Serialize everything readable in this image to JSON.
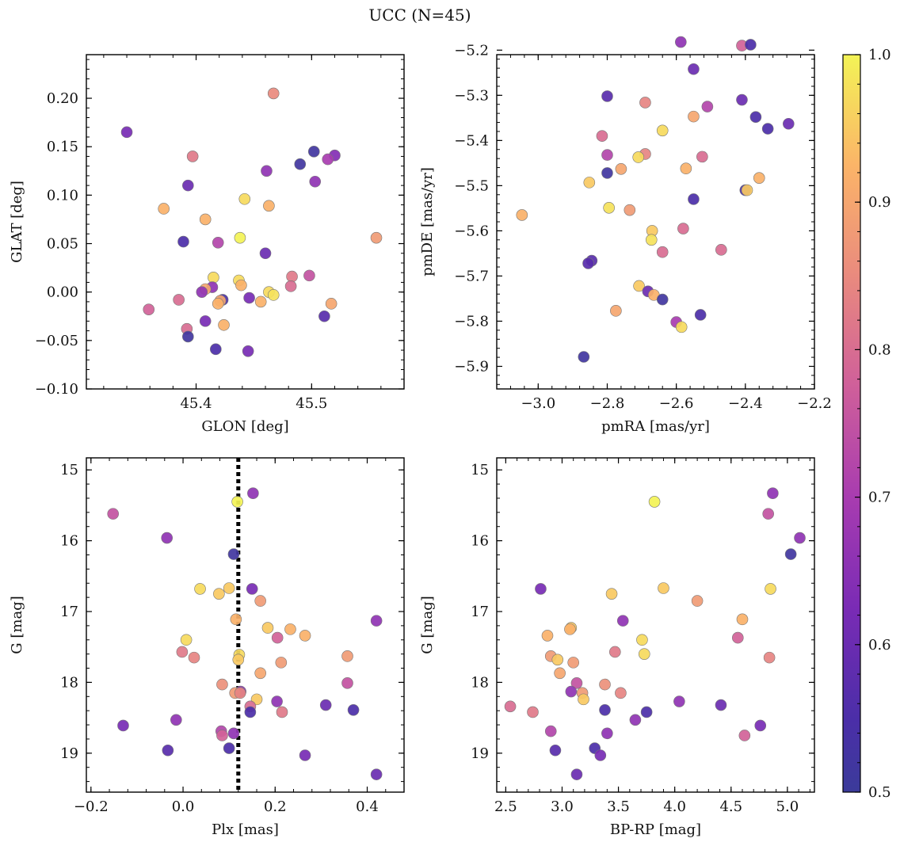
{
  "figure": {
    "title": "UCC (N=45)"
  },
  "colorbar": {
    "min": 0.5,
    "max": 1.0,
    "ticks": [
      0.5,
      0.6,
      0.7,
      0.8,
      0.9,
      1.0
    ],
    "cmap": "plasma"
  },
  "chart_data": [
    {
      "type": "scatter",
      "xlabel": "GLON [deg]",
      "ylabel": "GLAT [deg]",
      "xlim": [
        45.305,
        45.58
      ],
      "ylim": [
        -0.1,
        0.245
      ],
      "xticks": [
        45.4,
        45.5
      ],
      "yticks": [
        -0.1,
        -0.05,
        0.0,
        0.05,
        0.1,
        0.15,
        0.2
      ],
      "xtick_labels": [
        "45.4",
        "45.5"
      ],
      "ytick_labels": [
        "−0.10",
        "−0.05",
        "0.00",
        "0.05",
        "0.10",
        "0.15",
        "0.20"
      ],
      "points": [
        {
          "x": 45.34,
          "y": 0.165,
          "c": 0.62
        },
        {
          "x": 45.467,
          "y": 0.205,
          "c": 0.85
        },
        {
          "x": 45.397,
          "y": 0.14,
          "c": 0.82
        },
        {
          "x": 45.49,
          "y": 0.132,
          "c": 0.52
        },
        {
          "x": 45.502,
          "y": 0.145,
          "c": 0.52
        },
        {
          "x": 45.52,
          "y": 0.141,
          "c": 0.64
        },
        {
          "x": 45.514,
          "y": 0.137,
          "c": 0.7
        },
        {
          "x": 45.461,
          "y": 0.125,
          "c": 0.66
        },
        {
          "x": 45.503,
          "y": 0.114,
          "c": 0.66
        },
        {
          "x": 45.393,
          "y": 0.11,
          "c": 0.6
        },
        {
          "x": 45.442,
          "y": 0.096,
          "c": 0.97
        },
        {
          "x": 45.372,
          "y": 0.086,
          "c": 0.92
        },
        {
          "x": 45.463,
          "y": 0.089,
          "c": 0.92
        },
        {
          "x": 45.408,
          "y": 0.075,
          "c": 0.92
        },
        {
          "x": 45.556,
          "y": 0.056,
          "c": 0.88
        },
        {
          "x": 45.438,
          "y": 0.056,
          "c": 1.0
        },
        {
          "x": 45.389,
          "y": 0.052,
          "c": 0.55
        },
        {
          "x": 45.419,
          "y": 0.051,
          "c": 0.72
        },
        {
          "x": 45.46,
          "y": 0.04,
          "c": 0.6
        },
        {
          "x": 45.483,
          "y": 0.016,
          "c": 0.82
        },
        {
          "x": 45.498,
          "y": 0.017,
          "c": 0.75
        },
        {
          "x": 45.415,
          "y": 0.015,
          "c": 0.97
        },
        {
          "x": 45.437,
          "y": 0.012,
          "c": 0.97
        },
        {
          "x": 45.439,
          "y": 0.007,
          "c": 0.92
        },
        {
          "x": 45.482,
          "y": 0.006,
          "c": 0.8
        },
        {
          "x": 45.414,
          "y": 0.005,
          "c": 0.66
        },
        {
          "x": 45.408,
          "y": 0.003,
          "c": 0.9
        },
        {
          "x": 45.405,
          "y": 0.0,
          "c": 0.66
        },
        {
          "x": 45.463,
          "y": 0.0,
          "c": 0.97
        },
        {
          "x": 45.467,
          "y": -0.003,
          "c": 0.98
        },
        {
          "x": 45.423,
          "y": -0.008,
          "c": 0.55
        },
        {
          "x": 45.421,
          "y": -0.009,
          "c": 0.9
        },
        {
          "x": 45.446,
          "y": -0.006,
          "c": 0.62
        },
        {
          "x": 45.456,
          "y": -0.01,
          "c": 0.92
        },
        {
          "x": 45.419,
          "y": -0.012,
          "c": 0.92
        },
        {
          "x": 45.517,
          "y": -0.012,
          "c": 0.9
        },
        {
          "x": 45.385,
          "y": -0.008,
          "c": 0.8
        },
        {
          "x": 45.359,
          "y": -0.018,
          "c": 0.78
        },
        {
          "x": 45.511,
          "y": -0.025,
          "c": 0.57
        },
        {
          "x": 45.408,
          "y": -0.03,
          "c": 0.62
        },
        {
          "x": 45.424,
          "y": -0.034,
          "c": 0.92
        },
        {
          "x": 45.392,
          "y": -0.038,
          "c": 0.8
        },
        {
          "x": 45.393,
          "y": -0.046,
          "c": 0.52
        },
        {
          "x": 45.417,
          "y": -0.059,
          "c": 0.55
        },
        {
          "x": 45.445,
          "y": -0.061,
          "c": 0.62
        }
      ]
    },
    {
      "type": "scatter",
      "xlabel": "pmRA [mas/yr]",
      "ylabel": "pmDE [mas/yr]",
      "xlim": [
        -3.12,
        -2.2
      ],
      "ylim": [
        -5.95,
        -5.21
      ],
      "xticks": [
        -3.0,
        -2.8,
        -2.6,
        -2.4,
        -2.2
      ],
      "yticks": [
        -5.9,
        -5.8,
        -5.7,
        -5.6,
        -5.5,
        -5.4,
        -5.3,
        -5.2
      ],
      "xtick_labels": [
        "−3.0",
        "−2.8",
        "−2.6",
        "−2.4",
        "−2.2"
      ],
      "ytick_labels": [
        "−5.9",
        "−5.8",
        "−5.7",
        "−5.6",
        "−5.5",
        "−5.4",
        "−5.3",
        "−5.2"
      ],
      "points": [
        {
          "x": -2.587,
          "y": -5.182,
          "c": 0.66
        },
        {
          "x": -2.41,
          "y": -5.19,
          "c": 0.78
        },
        {
          "x": -2.385,
          "y": -5.188,
          "c": 0.55
        },
        {
          "x": -2.55,
          "y": -5.242,
          "c": 0.6
        },
        {
          "x": -2.8,
          "y": -5.302,
          "c": 0.57
        },
        {
          "x": -2.41,
          "y": -5.31,
          "c": 0.6
        },
        {
          "x": -2.69,
          "y": -5.316,
          "c": 0.84
        },
        {
          "x": -2.51,
          "y": -5.325,
          "c": 0.72
        },
        {
          "x": -2.37,
          "y": -5.348,
          "c": 0.55
        },
        {
          "x": -2.55,
          "y": -5.347,
          "c": 0.9
        },
        {
          "x": -2.275,
          "y": -5.363,
          "c": 0.6
        },
        {
          "x": -2.335,
          "y": -5.374,
          "c": 0.55
        },
        {
          "x": -2.64,
          "y": -5.378,
          "c": 0.97
        },
        {
          "x": -2.815,
          "y": -5.39,
          "c": 0.8
        },
        {
          "x": -2.8,
          "y": -5.432,
          "c": 0.72
        },
        {
          "x": -2.525,
          "y": -5.436,
          "c": 0.8
        },
        {
          "x": -2.69,
          "y": -5.43,
          "c": 0.84
        },
        {
          "x": -2.71,
          "y": -5.437,
          "c": 0.97
        },
        {
          "x": -2.76,
          "y": -5.463,
          "c": 0.9
        },
        {
          "x": -2.572,
          "y": -5.462,
          "c": 0.92
        },
        {
          "x": -2.8,
          "y": -5.472,
          "c": 0.52
        },
        {
          "x": -2.36,
          "y": -5.483,
          "c": 0.92
        },
        {
          "x": -2.852,
          "y": -5.493,
          "c": 0.95
        },
        {
          "x": -2.4,
          "y": -5.51,
          "c": 0.55
        },
        {
          "x": -2.395,
          "y": -5.51,
          "c": 0.95
        },
        {
          "x": -2.55,
          "y": -5.53,
          "c": 0.55
        },
        {
          "x": -2.795,
          "y": -5.549,
          "c": 0.98
        },
        {
          "x": -2.735,
          "y": -5.554,
          "c": 0.88
        },
        {
          "x": -3.047,
          "y": -5.565,
          "c": 0.92
        },
        {
          "x": -2.58,
          "y": -5.595,
          "c": 0.8
        },
        {
          "x": -2.67,
          "y": -5.6,
          "c": 0.95
        },
        {
          "x": -2.672,
          "y": -5.62,
          "c": 0.98
        },
        {
          "x": -2.64,
          "y": -5.647,
          "c": 0.8
        },
        {
          "x": -2.47,
          "y": -5.642,
          "c": 0.8
        },
        {
          "x": -2.845,
          "y": -5.666,
          "c": 0.57
        },
        {
          "x": -2.855,
          "y": -5.672,
          "c": 0.57
        },
        {
          "x": -2.708,
          "y": -5.722,
          "c": 0.95
        },
        {
          "x": -2.682,
          "y": -5.734,
          "c": 0.6
        },
        {
          "x": -2.665,
          "y": -5.742,
          "c": 0.92
        },
        {
          "x": -2.64,
          "y": -5.752,
          "c": 0.52
        },
        {
          "x": -2.775,
          "y": -5.777,
          "c": 0.9
        },
        {
          "x": -2.53,
          "y": -5.786,
          "c": 0.55
        },
        {
          "x": -2.6,
          "y": -5.802,
          "c": 0.7
        },
        {
          "x": -2.585,
          "y": -5.813,
          "c": 0.97
        },
        {
          "x": -2.868,
          "y": -5.879,
          "c": 0.52
        }
      ]
    },
    {
      "type": "scatter",
      "xlabel": "Plx [mas]",
      "ylabel": "G [mag]",
      "xlim": [
        -0.21,
        0.48
      ],
      "ylim": [
        19.55,
        14.83
      ],
      "xticks": [
        -0.2,
        0.0,
        0.2,
        0.4
      ],
      "yticks": [
        15,
        16,
        17,
        18,
        19
      ],
      "xtick_labels": [
        "−0.2",
        "0.0",
        "0.2",
        "0.4"
      ],
      "ytick_labels": [
        "15",
        "16",
        "17",
        "18",
        "19"
      ],
      "vline": 0.12,
      "points": [
        {
          "x": 0.118,
          "y": 15.45,
          "c": 1.0
        },
        {
          "x": 0.152,
          "y": 15.33,
          "c": 0.66
        },
        {
          "x": -0.152,
          "y": 15.62,
          "c": 0.75
        },
        {
          "x": -0.035,
          "y": 15.96,
          "c": 0.66
        },
        {
          "x": 0.11,
          "y": 16.19,
          "c": 0.52
        },
        {
          "x": 0.037,
          "y": 16.68,
          "c": 0.97
        },
        {
          "x": 0.1,
          "y": 16.67,
          "c": 0.95
        },
        {
          "x": 0.15,
          "y": 16.68,
          "c": 0.62
        },
        {
          "x": 0.078,
          "y": 16.75,
          "c": 0.95
        },
        {
          "x": 0.168,
          "y": 16.85,
          "c": 0.88
        },
        {
          "x": 0.115,
          "y": 17.11,
          "c": 0.92
        },
        {
          "x": 0.42,
          "y": 17.13,
          "c": 0.66
        },
        {
          "x": 0.184,
          "y": 17.23,
          "c": 0.95
        },
        {
          "x": 0.233,
          "y": 17.25,
          "c": 0.92
        },
        {
          "x": 0.265,
          "y": 17.34,
          "c": 0.92
        },
        {
          "x": 0.205,
          "y": 17.37,
          "c": 0.78
        },
        {
          "x": 0.007,
          "y": 17.4,
          "c": 0.97
        },
        {
          "x": -0.002,
          "y": 17.57,
          "c": 0.82
        },
        {
          "x": 0.122,
          "y": 17.61,
          "c": 0.97
        },
        {
          "x": 0.357,
          "y": 17.63,
          "c": 0.88
        },
        {
          "x": 0.024,
          "y": 17.65,
          "c": 0.84
        },
        {
          "x": 0.12,
          "y": 17.68,
          "c": 0.95
        },
        {
          "x": 0.213,
          "y": 17.72,
          "c": 0.88
        },
        {
          "x": 0.168,
          "y": 17.87,
          "c": 0.9
        },
        {
          "x": 0.357,
          "y": 18.01,
          "c": 0.75
        },
        {
          "x": 0.085,
          "y": 18.03,
          "c": 0.86
        },
        {
          "x": 0.125,
          "y": 18.13,
          "c": 0.66
        },
        {
          "x": 0.113,
          "y": 18.15,
          "c": 0.88
        },
        {
          "x": 0.124,
          "y": 18.15,
          "c": 0.84
        },
        {
          "x": 0.16,
          "y": 18.24,
          "c": 0.95
        },
        {
          "x": 0.204,
          "y": 18.27,
          "c": 0.66
        },
        {
          "x": 0.31,
          "y": 18.32,
          "c": 0.6
        },
        {
          "x": 0.146,
          "y": 18.34,
          "c": 0.8
        },
        {
          "x": 0.37,
          "y": 18.39,
          "c": 0.55
        },
        {
          "x": 0.146,
          "y": 18.42,
          "c": 0.55
        },
        {
          "x": 0.215,
          "y": 18.42,
          "c": 0.82
        },
        {
          "x": -0.015,
          "y": 18.53,
          "c": 0.66
        },
        {
          "x": -0.13,
          "y": 18.61,
          "c": 0.62
        },
        {
          "x": 0.083,
          "y": 18.69,
          "c": 0.72
        },
        {
          "x": 0.11,
          "y": 18.72,
          "c": 0.66
        },
        {
          "x": 0.085,
          "y": 18.75,
          "c": 0.78
        },
        {
          "x": 0.1,
          "y": 18.93,
          "c": 0.55
        },
        {
          "x": -0.033,
          "y": 18.96,
          "c": 0.57
        },
        {
          "x": 0.265,
          "y": 19.03,
          "c": 0.62
        },
        {
          "x": 0.42,
          "y": 19.3,
          "c": 0.6
        }
      ]
    },
    {
      "type": "scatter",
      "xlabel": "BP-RP [mag]",
      "ylabel": "G [mag]",
      "xlim": [
        2.42,
        5.24
      ],
      "ylim": [
        19.55,
        14.83
      ],
      "xticks": [
        2.5,
        3.0,
        3.5,
        4.0,
        4.5,
        5.0
      ],
      "yticks": [
        15,
        16,
        17,
        18,
        19
      ],
      "xtick_labels": [
        "2.5",
        "3.0",
        "3.5",
        "4.0",
        "4.5",
        "5.0"
      ],
      "ytick_labels": [
        "15",
        "16",
        "17",
        "18",
        "19"
      ],
      "points": [
        {
          "x": 4.87,
          "y": 15.33,
          "c": 0.66
        },
        {
          "x": 3.82,
          "y": 15.45,
          "c": 1.0
        },
        {
          "x": 4.83,
          "y": 15.62,
          "c": 0.75
        },
        {
          "x": 5.11,
          "y": 15.96,
          "c": 0.66
        },
        {
          "x": 5.03,
          "y": 16.19,
          "c": 0.52
        },
        {
          "x": 2.81,
          "y": 16.68,
          "c": 0.62
        },
        {
          "x": 3.9,
          "y": 16.67,
          "c": 0.95
        },
        {
          "x": 4.85,
          "y": 16.68,
          "c": 0.97
        },
        {
          "x": 3.44,
          "y": 16.75,
          "c": 0.95
        },
        {
          "x": 4.2,
          "y": 16.85,
          "c": 0.88
        },
        {
          "x": 4.6,
          "y": 17.11,
          "c": 0.92
        },
        {
          "x": 3.54,
          "y": 17.13,
          "c": 0.66
        },
        {
          "x": 3.08,
          "y": 17.23,
          "c": 0.95
        },
        {
          "x": 3.07,
          "y": 17.25,
          "c": 0.92
        },
        {
          "x": 2.87,
          "y": 17.34,
          "c": 0.92
        },
        {
          "x": 4.56,
          "y": 17.37,
          "c": 0.78
        },
        {
          "x": 3.71,
          "y": 17.4,
          "c": 0.97
        },
        {
          "x": 3.47,
          "y": 17.57,
          "c": 0.82
        },
        {
          "x": 3.73,
          "y": 17.6,
          "c": 0.97
        },
        {
          "x": 2.9,
          "y": 17.63,
          "c": 0.88
        },
        {
          "x": 4.84,
          "y": 17.65,
          "c": 0.84
        },
        {
          "x": 2.96,
          "y": 17.68,
          "c": 0.95
        },
        {
          "x": 3.1,
          "y": 17.72,
          "c": 0.88
        },
        {
          "x": 2.98,
          "y": 17.87,
          "c": 0.9
        },
        {
          "x": 3.13,
          "y": 18.01,
          "c": 0.75
        },
        {
          "x": 3.38,
          "y": 18.03,
          "c": 0.86
        },
        {
          "x": 3.08,
          "y": 18.13,
          "c": 0.66
        },
        {
          "x": 3.18,
          "y": 18.15,
          "c": 0.88
        },
        {
          "x": 3.52,
          "y": 18.15,
          "c": 0.84
        },
        {
          "x": 3.19,
          "y": 18.24,
          "c": 0.95
        },
        {
          "x": 4.04,
          "y": 18.27,
          "c": 0.66
        },
        {
          "x": 4.41,
          "y": 18.32,
          "c": 0.6
        },
        {
          "x": 2.54,
          "y": 18.34,
          "c": 0.8
        },
        {
          "x": 3.38,
          "y": 18.39,
          "c": 0.55
        },
        {
          "x": 3.75,
          "y": 18.42,
          "c": 0.55
        },
        {
          "x": 2.74,
          "y": 18.42,
          "c": 0.82
        },
        {
          "x": 3.65,
          "y": 18.53,
          "c": 0.66
        },
        {
          "x": 4.76,
          "y": 18.61,
          "c": 0.62
        },
        {
          "x": 2.9,
          "y": 18.69,
          "c": 0.72
        },
        {
          "x": 3.4,
          "y": 18.72,
          "c": 0.66
        },
        {
          "x": 4.62,
          "y": 18.75,
          "c": 0.78
        },
        {
          "x": 3.29,
          "y": 18.93,
          "c": 0.55
        },
        {
          "x": 2.94,
          "y": 18.96,
          "c": 0.57
        },
        {
          "x": 3.34,
          "y": 19.03,
          "c": 0.62
        },
        {
          "x": 3.13,
          "y": 19.3,
          "c": 0.6
        }
      ]
    }
  ]
}
